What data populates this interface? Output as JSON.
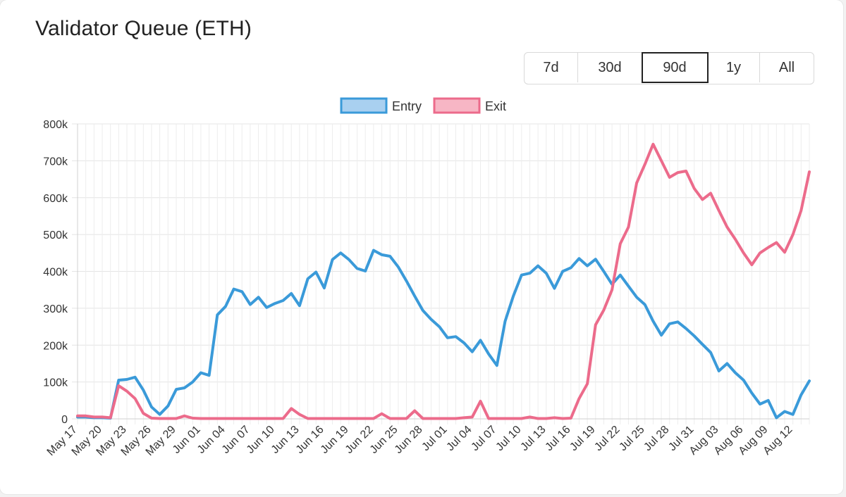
{
  "header": {
    "title": "Validator Queue (ETH)"
  },
  "range_buttons": [
    {
      "label": "7d",
      "active": false
    },
    {
      "label": "30d",
      "active": false
    },
    {
      "label": "90d",
      "active": true
    },
    {
      "label": "1y",
      "active": false
    },
    {
      "label": "All",
      "active": false
    }
  ],
  "chart_data": {
    "type": "line",
    "title": "",
    "xlabel": "",
    "ylabel": "",
    "ylim": [
      0,
      800000
    ],
    "y_ticks": [
      {
        "value": 0,
        "label": "0"
      },
      {
        "value": 100000,
        "label": "100k"
      },
      {
        "value": 200000,
        "label": "200k"
      },
      {
        "value": 300000,
        "label": "300k"
      },
      {
        "value": 400000,
        "label": "400k"
      },
      {
        "value": 500000,
        "label": "500k"
      },
      {
        "value": 600000,
        "label": "600k"
      },
      {
        "value": 700000,
        "label": "700k"
      },
      {
        "value": 800000,
        "label": "800k"
      }
    ],
    "x_tick_labels": [
      "May 17",
      "May 20",
      "May 23",
      "May 26",
      "May 29",
      "Jun 01",
      "Jun 04",
      "Jun 07",
      "Jun 10",
      "Jun 13",
      "Jun 16",
      "Jun 19",
      "Jun 22",
      "Jun 25",
      "Jun 28",
      "Jul 01",
      "Jul 04",
      "Jul 07",
      "Jul 10",
      "Jul 13",
      "Jul 16",
      "Jul 19",
      "Jul 22",
      "Jul 25",
      "Jul 28",
      "Jul 31",
      "Aug 03",
      "Aug 06",
      "Aug 09",
      "Aug 12"
    ],
    "x_start_label": "May 17",
    "grid": true,
    "legend_position": "top-center",
    "series": [
      {
        "name": "Entry",
        "color": "#3a9ad9",
        "fill": "#a9d0f0",
        "values": [
          5000,
          5000,
          3000,
          3000,
          2000,
          105000,
          107000,
          113000,
          78000,
          32000,
          12000,
          35000,
          80000,
          84000,
          100000,
          125000,
          118000,
          282000,
          305000,
          352000,
          345000,
          310000,
          330000,
          302000,
          313000,
          321000,
          340000,
          307000,
          380000,
          398000,
          355000,
          432000,
          450000,
          432000,
          408000,
          401000,
          457000,
          445000,
          441000,
          412000,
          374000,
          333000,
          294000,
          270000,
          250000,
          220000,
          223000,
          206000,
          182000,
          213000,
          176000,
          145000,
          265000,
          333000,
          390000,
          395000,
          415000,
          395000,
          354000,
          400000,
          410000,
          435000,
          415000,
          433000,
          400000,
          365000,
          390000,
          360000,
          330000,
          310000,
          265000,
          227000,
          258000,
          263000,
          245000,
          225000,
          202000,
          180000,
          130000,
          150000,
          125000,
          105000,
          70000,
          40000,
          50000,
          3000,
          20000,
          12000,
          65000,
          103000
        ]
      },
      {
        "name": "Exit",
        "color": "#ec6b8b",
        "fill": "#f7b6c5",
        "values": [
          8000,
          8000,
          5000,
          5000,
          3000,
          90000,
          75000,
          55000,
          15000,
          2000,
          1000,
          1000,
          1000,
          8000,
          2000,
          1000,
          1000,
          1000,
          1000,
          1000,
          1000,
          1000,
          1000,
          1000,
          1000,
          1000,
          28000,
          12000,
          1000,
          1000,
          1000,
          1000,
          1000,
          1000,
          1000,
          1000,
          1000,
          14000,
          1000,
          1000,
          1000,
          22000,
          1000,
          1000,
          1000,
          1000,
          1000,
          3000,
          5000,
          48000,
          1000,
          1000,
          1000,
          1000,
          1000,
          5000,
          1000,
          1000,
          3000,
          1000,
          2000,
          55000,
          95000,
          255000,
          295000,
          350000,
          475000,
          520000,
          640000,
          690000,
          745000,
          700000,
          655000,
          668000,
          672000,
          625000,
          595000,
          612000,
          565000,
          520000,
          487000,
          450000,
          418000,
          450000,
          465000,
          478000,
          452000,
          500000,
          565000,
          670000
        ]
      }
    ]
  }
}
